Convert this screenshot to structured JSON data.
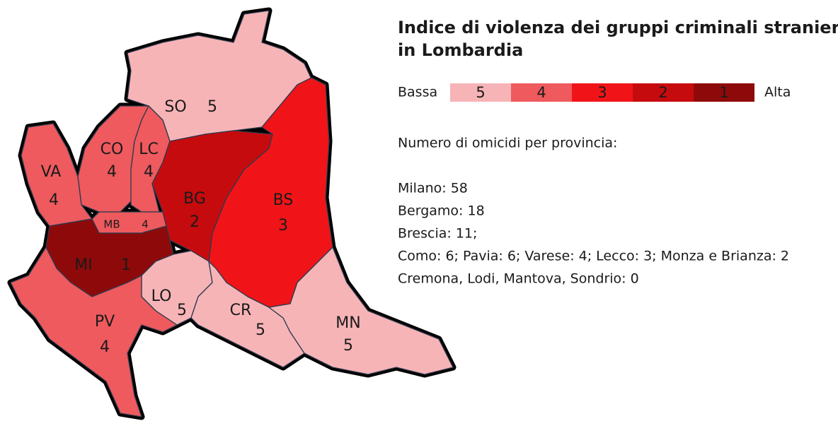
{
  "title_lines": [
    "Indice di violenza dei gruppi criminali stranieri",
    "in Lombardia"
  ],
  "legend": {
    "low": "Bassa",
    "high": "Alta",
    "levels": [
      {
        "label": "5",
        "color": "#f7b4b7"
      },
      {
        "label": "4",
        "color": "#ee5a5e"
      },
      {
        "label": "3",
        "color": "#f01418"
      },
      {
        "label": "2",
        "color": "#c60b0e"
      },
      {
        "label": "1",
        "color": "#8e0a0a"
      }
    ]
  },
  "provinces": [
    {
      "code": "SO",
      "index": "5"
    },
    {
      "code": "CO",
      "index": "4"
    },
    {
      "code": "LC",
      "index": "4"
    },
    {
      "code": "VA",
      "index": "4"
    },
    {
      "code": "MB",
      "index": "4"
    },
    {
      "code": "BG",
      "index": "2"
    },
    {
      "code": "BS",
      "index": "3"
    },
    {
      "code": "MI",
      "index": "1"
    },
    {
      "code": "LO",
      "index": "5"
    },
    {
      "code": "CR",
      "index": "5"
    },
    {
      "code": "MN",
      "index": "5"
    },
    {
      "code": "PV",
      "index": "4"
    }
  ],
  "homicides": {
    "heading": "Numero di omicidi per provincia:",
    "lines": [
      "Milano: 58",
      "Bergamo: 18",
      "Brescia: 11;",
      "Como: 6; Pavia: 6; Varese: 4; Lecco: 3; Monza e Brianza: 2",
      "Cremona, Lodi, Mantova, Sondrio: 0"
    ]
  }
}
